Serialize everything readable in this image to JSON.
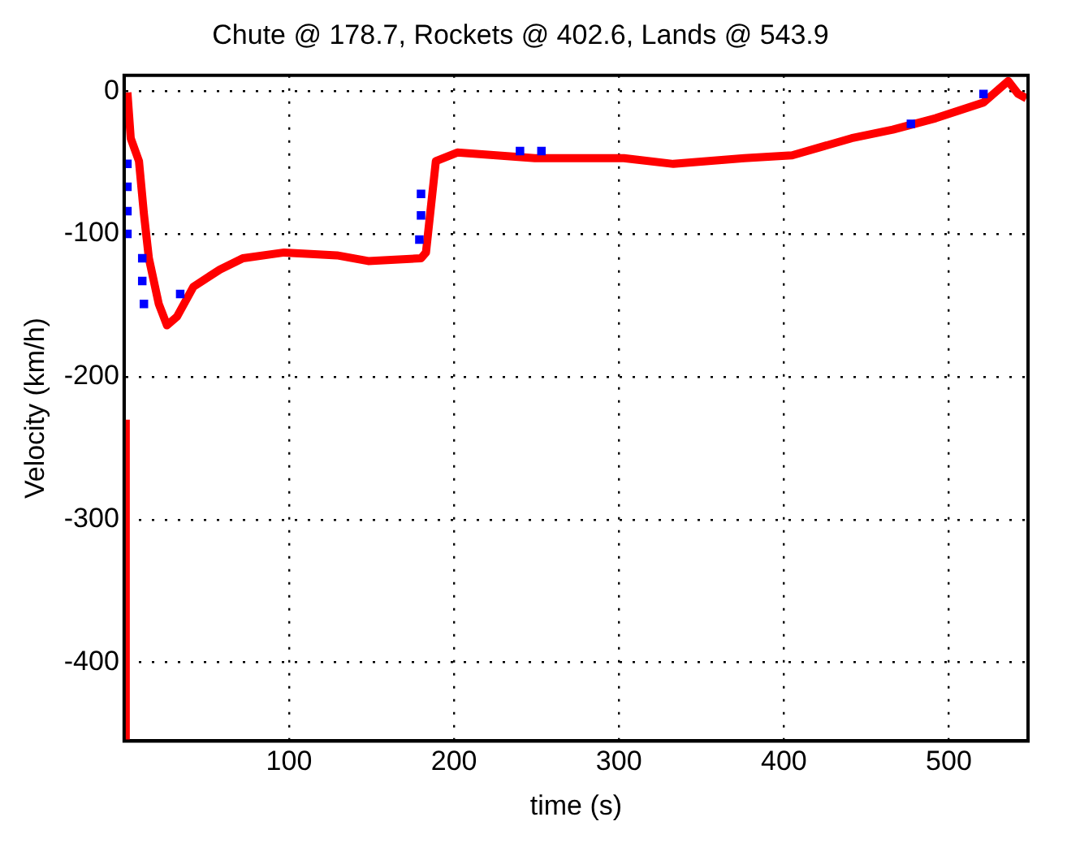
{
  "chart_data": {
    "type": "line",
    "title": "Chute @ 178.7, Rockets @ 402.6, Lands @ 543.9",
    "xlabel": "time (s)",
    "ylabel": "Velocity (km/h)",
    "xlim": [
      0,
      548
    ],
    "xticks": [
      100,
      200,
      300,
      400,
      500
    ],
    "ylim": [
      -455,
      11
    ],
    "yticks": [
      -400,
      -300,
      -200,
      -100,
      0
    ],
    "grid": true,
    "line_style": "solid",
    "series": [
      {
        "color": "#ff0000",
        "x": [
          1,
          1,
          null,
          2,
          4,
          9,
          12,
          15,
          21,
          26,
          32,
          42,
          58,
          72,
          97,
          129,
          148,
          180,
          183,
          189,
          202,
          249,
          303,
          333,
          376,
          405,
          441,
          466,
          492,
          521,
          536,
          542,
          547
        ],
        "values": [
          -455,
          -230,
          null,
          -1,
          -33,
          -49,
          -86,
          -117,
          -149,
          -164,
          -158,
          -137,
          -125,
          -117,
          -113,
          -115,
          -119,
          -117,
          -113,
          -49,
          -43,
          -47,
          -47,
          -51,
          -47,
          -45,
          -33,
          -27,
          -19,
          -8,
          7,
          -2,
          -5
        ]
      },
      {
        "type": "scatter",
        "marker": "square",
        "color": "#0000ff",
        "x": [
          2,
          2,
          2,
          2,
          11,
          11,
          12,
          34,
          180,
          180,
          179,
          240,
          253,
          477,
          521
        ],
        "values": [
          -51,
          -67,
          -84,
          -100,
          -117,
          -133,
          -149,
          -142,
          -72,
          -87,
          -104,
          -42,
          -42,
          -23,
          -2
        ]
      }
    ]
  }
}
